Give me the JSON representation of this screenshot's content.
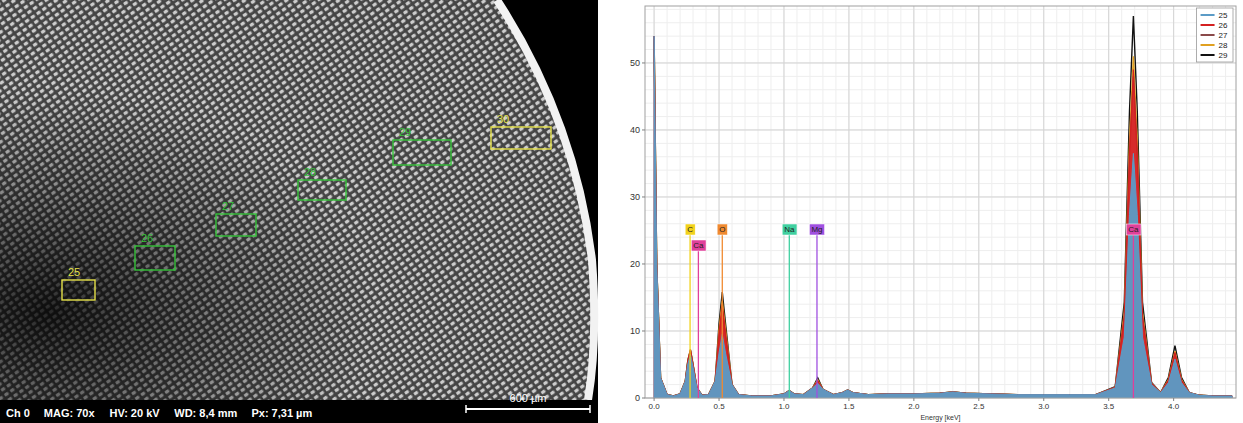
{
  "micrograph": {
    "info": [
      "Ch 0",
      "MAG: 70x",
      "HV: 20 kV",
      "WD: 8,4 mm",
      "Px: 7,31 µm"
    ],
    "scale_bar": "600 µm",
    "regions": [
      {
        "label": "25",
        "color": "#e6e24a"
      },
      {
        "label": "26",
        "color": "#36c43a"
      },
      {
        "label": "27",
        "color": "#36c43a"
      },
      {
        "label": "28",
        "color": "#36c43a"
      },
      {
        "label": "29",
        "color": "#36c43a"
      },
      {
        "label": "30",
        "color": "#e6e24a"
      }
    ]
  },
  "chart_data": {
    "type": "line",
    "x_label": "Energy [keV]",
    "x": [
      0,
      0.02,
      0.05,
      0.1,
      0.15,
      0.2,
      0.24,
      0.26,
      0.28,
      0.3,
      0.33,
      0.37,
      0.42,
      0.47,
      0.5,
      0.525,
      0.55,
      0.6,
      0.65,
      0.75,
      0.9,
      1.0,
      1.04,
      1.08,
      1.15,
      1.22,
      1.26,
      1.3,
      1.38,
      1.45,
      1.49,
      1.53,
      1.65,
      1.8,
      2.0,
      2.2,
      2.3,
      2.4,
      2.6,
      2.8,
      3.0,
      3.2,
      3.4,
      3.55,
      3.62,
      3.66,
      3.69,
      3.72,
      3.76,
      3.83,
      3.9,
      3.96,
      4.01,
      4.06,
      4.12,
      4.2,
      4.3,
      4.45
    ],
    "series": [
      {
        "name": "25",
        "color": "#5b9bc6",
        "type": "area",
        "values": [
          54,
          20,
          3,
          0.5,
          0.3,
          0.6,
          2.5,
          5.1,
          6.5,
          4.6,
          1.5,
          0.4,
          0.5,
          2.5,
          6.7,
          9.5,
          6.7,
          2,
          0.5,
          0.3,
          0.3,
          0.6,
          1.1,
          0.6,
          0.5,
          1.5,
          2.2,
          1.3,
          0.5,
          0.8,
          1.2,
          0.8,
          0.5,
          0.6,
          0.6,
          0.7,
          0.9,
          0.7,
          0.6,
          0.5,
          0.5,
          0.5,
          0.5,
          1.5,
          9.1,
          27.4,
          36.5,
          27.4,
          9.1,
          2,
          0.8,
          2.3,
          5.8,
          2.3,
          0.8,
          0.4,
          0.3,
          0.3
        ]
      },
      {
        "name": "26",
        "color": "#d42020",
        "type": "area",
        "values": [
          54,
          20,
          3,
          0.5,
          0.3,
          0.6,
          2.5,
          5.6,
          7.2,
          5,
          1.5,
          0.4,
          0.5,
          2.5,
          9.8,
          14,
          9.8,
          2,
          0.5,
          0.3,
          0.3,
          0.6,
          1.1,
          0.6,
          0.5,
          1.5,
          2.6,
          1.3,
          0.5,
          0.8,
          1.2,
          0.8,
          0.5,
          0.6,
          0.6,
          0.7,
          0.9,
          0.7,
          0.6,
          0.5,
          0.5,
          0.5,
          0.5,
          1.6,
          12.3,
          36.8,
          49,
          36.8,
          12.3,
          2.2,
          0.8,
          2.7,
          6.8,
          2.7,
          0.8,
          0.4,
          0.3,
          0.3
        ]
      },
      {
        "name": "27",
        "color": "#8a4a4a",
        "type": "line",
        "values": [
          54,
          20,
          3,
          0.5,
          0.3,
          0.6,
          2.5,
          5.5,
          7,
          4.9,
          1.5,
          0.4,
          0.5,
          2.5,
          9.1,
          13,
          9.1,
          2,
          0.5,
          0.3,
          0.3,
          0.6,
          1.1,
          0.6,
          0.5,
          1.5,
          2.5,
          1.3,
          0.5,
          0.8,
          1.2,
          0.8,
          0.5,
          0.6,
          0.6,
          0.7,
          0.9,
          0.7,
          0.6,
          0.5,
          0.5,
          0.5,
          0.5,
          1.6,
          12,
          36,
          48,
          36,
          12,
          2.2,
          0.8,
          2.6,
          6.6,
          2.6,
          0.8,
          0.4,
          0.3,
          0.3
        ]
      },
      {
        "name": "28",
        "color": "#e0a020",
        "type": "line",
        "values": [
          54,
          20,
          3,
          0.5,
          0.3,
          0.6,
          2.5,
          5.6,
          7.2,
          5,
          1.5,
          0.4,
          0.5,
          2.5,
          10.2,
          14.5,
          10.2,
          2,
          0.5,
          0.3,
          0.3,
          0.6,
          1.1,
          0.6,
          0.5,
          1.5,
          2.7,
          1.3,
          0.5,
          0.8,
          1.2,
          0.8,
          0.5,
          0.6,
          0.6,
          0.7,
          0.9,
          0.7,
          0.6,
          0.5,
          0.5,
          0.5,
          0.5,
          1.6,
          12.8,
          38.3,
          51,
          38.3,
          12.8,
          2.2,
          0.8,
          2.8,
          7,
          2.8,
          0.8,
          0.4,
          0.3,
          0.3
        ]
      },
      {
        "name": "29",
        "color": "#111111",
        "type": "line",
        "values": [
          54,
          20,
          3,
          0.5,
          0.3,
          0.6,
          2.5,
          5.6,
          7.2,
          5,
          1.5,
          0.4,
          0.5,
          2.5,
          11.1,
          15.8,
          11.1,
          2,
          0.5,
          0.3,
          0.3,
          0.6,
          1.1,
          0.6,
          0.5,
          1.5,
          3,
          1.3,
          0.5,
          0.8,
          1.2,
          0.8,
          0.5,
          0.6,
          0.6,
          0.7,
          0.9,
          0.7,
          0.6,
          0.5,
          0.5,
          0.5,
          0.5,
          1.7,
          14.3,
          42.8,
          57,
          42.8,
          14.3,
          2.3,
          0.8,
          3.1,
          7.8,
          3.1,
          0.8,
          0.4,
          0.3,
          0.3
        ]
      }
    ],
    "xlim": [
      -0.07,
      4.48
    ],
    "xticks": [
      {
        "value": 0,
        "label": "0.0"
      },
      {
        "value": 0.5,
        "label": "0.5"
      },
      {
        "value": 1,
        "label": "1.0"
      },
      {
        "value": 1.5,
        "label": "1.5"
      },
      {
        "value": 2,
        "label": "2.0"
      },
      {
        "value": 2.5,
        "label": "2.5"
      },
      {
        "value": 3,
        "label": "3.0"
      },
      {
        "value": 3.5,
        "label": "3.5"
      },
      {
        "value": 4,
        "label": "4.0"
      }
    ],
    "ylim": [
      0,
      58.5
    ],
    "yticks": [
      0,
      10,
      20,
      30,
      40,
      50
    ],
    "grid": true,
    "legend": "upper right",
    "annotations": [
      {
        "text": "C",
        "x": 0.277,
        "color": "#f2d21a"
      },
      {
        "text": "Ca",
        "x": 0.341,
        "color": "#e0409a"
      },
      {
        "text": "O",
        "x": 0.525,
        "color": "#f08a30"
      },
      {
        "text": "Na",
        "x": 1.041,
        "color": "#40d0a0"
      },
      {
        "text": "Mg",
        "x": 1.254,
        "color": "#a050e0"
      },
      {
        "text": "Ca",
        "x": 3.69,
        "color": "#e0409a"
      }
    ]
  }
}
